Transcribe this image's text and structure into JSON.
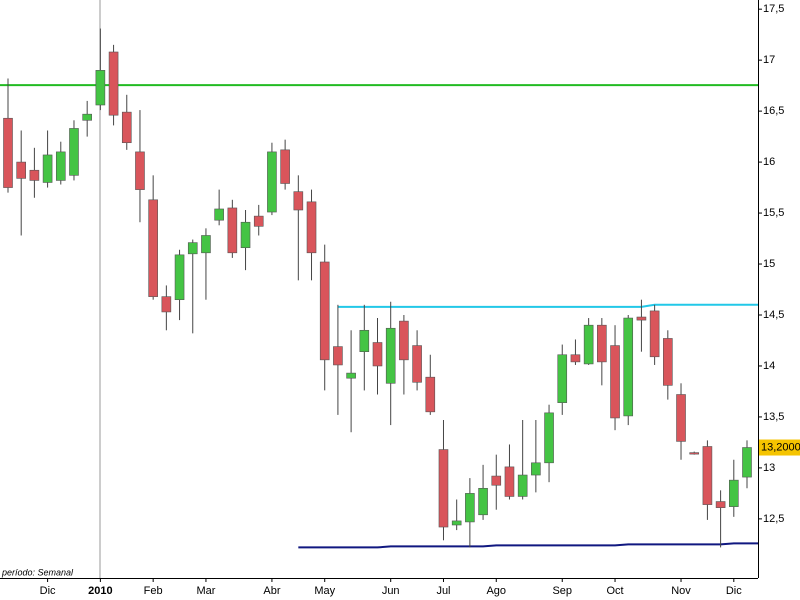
{
  "chart_data": {
    "type": "candlestick",
    "categories": [
      null,
      null,
      null,
      "Dic",
      null,
      null,
      null,
      "2010",
      null,
      null,
      null,
      "Feb",
      null,
      null,
      null,
      "Mar",
      null,
      null,
      null,
      null,
      "Abr",
      null,
      null,
      null,
      "May",
      null,
      null,
      null,
      null,
      "Jun",
      null,
      null,
      null,
      "Jul",
      null,
      null,
      null,
      "Ago",
      null,
      null,
      null,
      null,
      "Sep",
      null,
      null,
      null,
      "Oct",
      null,
      null,
      null,
      null,
      "Nov",
      null,
      null,
      null,
      "Dic",
      null
    ],
    "open": [
      16.43,
      16.0,
      15.92,
      15.8,
      15.82,
      15.87,
      16.41,
      16.56,
      17.08,
      16.49,
      16.1,
      15.63,
      14.68,
      14.65,
      15.1,
      15.11,
      15.43,
      15.55,
      15.16,
      15.47,
      15.51,
      16.12,
      15.71,
      15.61,
      15.02,
      14.19,
      13.88,
      14.14,
      14.23,
      13.83,
      14.44,
      14.2,
      13.89,
      13.18,
      12.44,
      12.47,
      12.54,
      12.92,
      13.01,
      12.72,
      12.93,
      13.05,
      13.64,
      14.11,
      14.02,
      14.4,
      14.2,
      13.51,
      14.48,
      14.54,
      14.27,
      13.72,
      13.15,
      13.21,
      12.67,
      12.62,
      12.91
    ],
    "high": [
      16.82,
      16.31,
      16.14,
      16.31,
      16.2,
      16.41,
      16.6,
      17.31,
      17.15,
      16.66,
      16.51,
      15.87,
      14.79,
      15.14,
      15.24,
      15.35,
      15.73,
      15.63,
      15.53,
      15.58,
      16.19,
      16.22,
      15.87,
      15.73,
      15.19,
      14.6,
      14.35,
      14.6,
      14.47,
      14.63,
      14.5,
      14.35,
      14.11,
      13.47,
      12.69,
      12.9,
      13.03,
      13.13,
      13.23,
      13.47,
      13.47,
      13.62,
      14.21,
      14.26,
      14.47,
      14.47,
      14.4,
      14.5,
      14.65,
      14.6,
      14.35,
      13.83,
      13.16,
      13.27,
      12.78,
      13.08,
      13.27
    ],
    "low": [
      15.7,
      15.28,
      15.65,
      15.75,
      15.78,
      15.82,
      16.25,
      16.51,
      16.36,
      16.12,
      15.41,
      14.65,
      14.35,
      14.45,
      14.32,
      14.65,
      15.38,
      15.06,
      14.94,
      15.28,
      15.48,
      15.73,
      14.84,
      14.84,
      13.76,
      13.52,
      13.35,
      13.76,
      13.72,
      13.42,
      13.72,
      13.76,
      13.52,
      12.29,
      12.39,
      12.22,
      12.49,
      12.59,
      12.69,
      12.69,
      12.76,
      12.86,
      13.52,
      14.01,
      14.01,
      13.81,
      13.37,
      13.42,
      14.14,
      14.01,
      13.67,
      13.08,
      13.13,
      12.49,
      12.22,
      12.52,
      12.8
    ],
    "close": [
      15.75,
      15.84,
      15.82,
      16.07,
      16.1,
      16.33,
      16.47,
      16.9,
      16.46,
      16.19,
      15.73,
      14.68,
      14.53,
      15.09,
      15.21,
      15.28,
      15.54,
      15.11,
      15.41,
      15.37,
      16.1,
      15.79,
      15.53,
      15.11,
      14.06,
      14.01,
      13.93,
      14.35,
      14.0,
      14.37,
      14.06,
      13.84,
      13.55,
      12.42,
      12.48,
      12.75,
      12.8,
      12.83,
      12.72,
      12.93,
      13.05,
      13.54,
      14.11,
      14.04,
      14.4,
      14.04,
      13.49,
      14.47,
      14.45,
      14.09,
      13.81,
      13.26,
      13.14,
      12.64,
      12.61,
      12.88,
      13.2
    ],
    "up_color": "#44c444",
    "down_color": "#d9555b",
    "lines": [
      {
        "color": "#22bb22",
        "values": [
          16.755,
          16.755,
          16.755,
          16.755,
          16.755,
          16.755,
          16.755,
          16.755,
          16.755,
          16.755,
          16.755,
          16.755,
          16.755,
          16.755,
          16.755,
          16.755,
          16.755,
          16.755,
          16.755,
          16.755,
          16.755,
          16.755,
          16.755,
          16.755,
          16.755,
          16.755,
          16.755,
          16.755,
          16.755,
          16.755,
          16.755,
          16.755,
          16.755,
          16.755,
          16.755,
          16.755,
          16.755,
          16.755,
          16.755,
          16.755,
          16.755,
          16.755,
          16.755,
          16.755,
          16.755,
          16.755,
          16.755,
          16.755,
          16.755,
          16.755,
          16.755,
          16.755,
          16.755,
          16.755,
          16.755,
          16.755,
          16.755
        ]
      },
      {
        "color": "#22c8e8",
        "values": [
          null,
          null,
          null,
          null,
          null,
          null,
          null,
          null,
          null,
          null,
          null,
          null,
          null,
          null,
          null,
          null,
          null,
          null,
          null,
          null,
          null,
          null,
          null,
          null,
          null,
          14.58,
          14.58,
          14.58,
          14.58,
          14.58,
          14.58,
          14.58,
          14.58,
          14.58,
          14.58,
          14.58,
          14.58,
          14.58,
          14.58,
          14.58,
          14.58,
          14.58,
          14.58,
          14.58,
          14.58,
          14.58,
          14.58,
          14.58,
          14.58,
          14.6,
          14.6,
          14.6,
          14.6,
          14.6,
          14.6,
          14.6,
          14.6
        ]
      },
      {
        "color": "#101880",
        "values": [
          null,
          null,
          null,
          null,
          null,
          null,
          null,
          null,
          null,
          null,
          null,
          null,
          null,
          null,
          null,
          null,
          null,
          null,
          null,
          null,
          null,
          null,
          12.22,
          12.22,
          12.22,
          12.22,
          12.22,
          12.22,
          12.22,
          12.23,
          12.23,
          12.23,
          12.23,
          12.23,
          12.23,
          12.23,
          12.23,
          12.24,
          12.24,
          12.24,
          12.24,
          12.24,
          12.24,
          12.24,
          12.24,
          12.24,
          12.24,
          12.25,
          12.25,
          12.25,
          12.25,
          12.25,
          12.25,
          12.25,
          12.25,
          12.26,
          12.26
        ]
      }
    ],
    "ylim": [
      11.92,
      17.59
    ],
    "yticks": [
      {
        "value": 12.5,
        "label": "12,5"
      },
      13,
      {
        "value": 13.5,
        "label": "13,5"
      },
      14,
      {
        "value": 14.5,
        "label": "14,5"
      },
      15,
      {
        "value": 15.5,
        "label": "15,5"
      },
      16,
      {
        "value": 16.5,
        "label": "16,5"
      },
      17,
      {
        "value": 17.5,
        "label": "17,5"
      }
    ],
    "last_price": {
      "value": 13.2,
      "label": "13,2000"
    },
    "period_label": "período: Semanal"
  }
}
